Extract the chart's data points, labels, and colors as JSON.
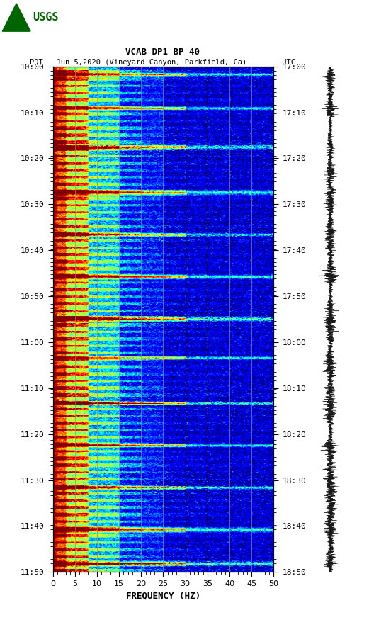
{
  "title_line1": "VCAB DP1 BP 40",
  "title_line2": "PDT   Jun 5,2020 (Vineyard Canyon, Parkfield, Ca)        UTC",
  "xlabel": "FREQUENCY (HZ)",
  "left_yticks": [
    "10:00",
    "10:10",
    "10:20",
    "10:30",
    "10:40",
    "10:50",
    "11:00",
    "11:10",
    "11:20",
    "11:30",
    "11:40",
    "11:50"
  ],
  "right_yticks": [
    "17:00",
    "17:10",
    "17:20",
    "17:30",
    "17:40",
    "17:50",
    "18:00",
    "18:10",
    "18:20",
    "18:30",
    "18:40",
    "18:50"
  ],
  "xmin": 0,
  "xmax": 50,
  "xticks": [
    0,
    5,
    10,
    15,
    20,
    25,
    30,
    35,
    40,
    45,
    50
  ],
  "n_time_steps": 720,
  "n_freq_steps": 200,
  "vertical_lines_hz": [
    5,
    10,
    15,
    20,
    25,
    30,
    35,
    40,
    45
  ],
  "bg_color": "white",
  "spectrogram_cmap": "jet"
}
